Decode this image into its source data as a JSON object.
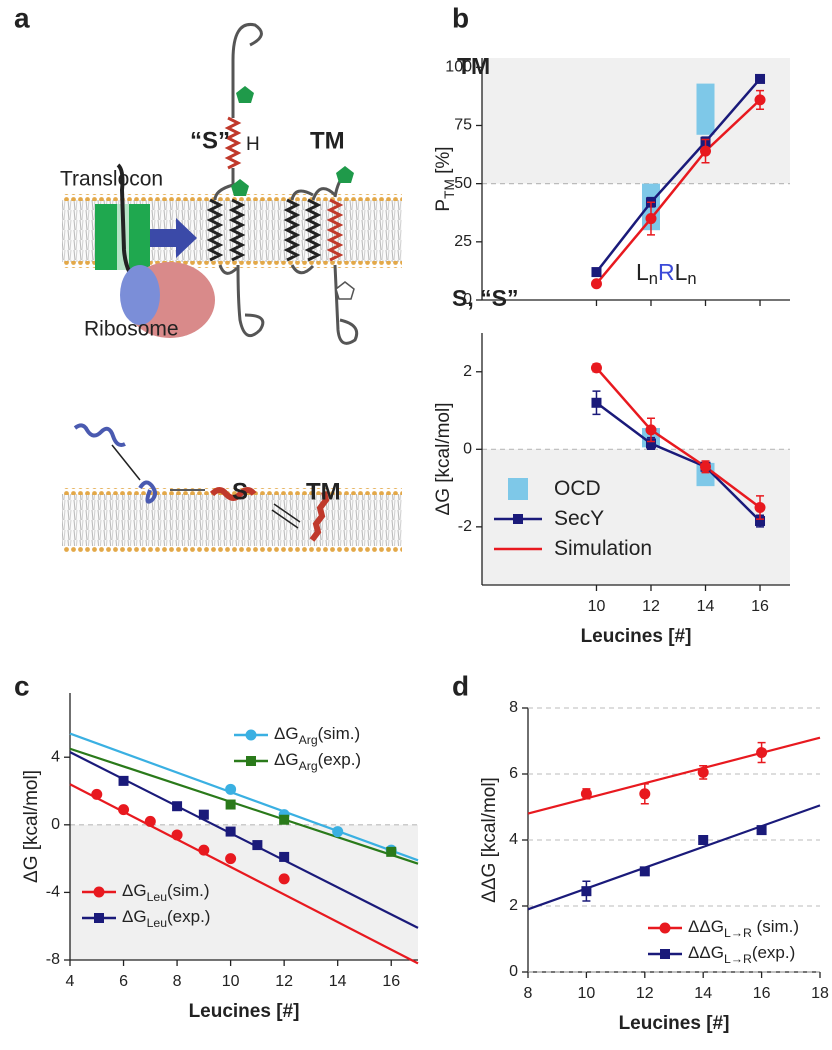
{
  "panel_labels": [
    "a",
    "b",
    "c",
    "d"
  ],
  "diagram": {
    "top": {
      "s_label": "“S”",
      "h_label": "H",
      "tm_label": "TM",
      "translocon": "Translocon",
      "ribosome": "Ribosome"
    },
    "bottom": {
      "s_label": "S",
      "tm_label": "TM"
    }
  },
  "chart_data": [
    {
      "type": "line",
      "ylabel": "PTM [%]",
      "upper_label": "TM",
      "lower_label": "S, “S”",
      "annotation": "LnRLn",
      "xlim": [
        5.8,
        17.1
      ],
      "ylim": [
        0,
        104
      ],
      "xticks": [
        10,
        12,
        14,
        16
      ],
      "xtick_labels": false,
      "yticks": [
        0,
        25,
        50,
        75,
        100
      ],
      "ref_line": 50,
      "shade": [
        50,
        104
      ],
      "series": [
        {
          "kind": "range",
          "color": "#7ec8e8",
          "x": [
            12,
            14
          ],
          "low": [
            30,
            71
          ],
          "high": [
            50,
            93
          ]
        },
        {
          "color": "#1a1a7a",
          "marker": "square",
          "x": [
            10,
            12,
            14,
            16
          ],
          "values": [
            12,
            42,
            68,
            95
          ],
          "errors": [
            1,
            2,
            2,
            1
          ]
        },
        {
          "color": "#e8191f",
          "marker": "circle",
          "x": [
            10,
            12,
            14,
            16
          ],
          "values": [
            7,
            35,
            64,
            86
          ],
          "errors": [
            1,
            7,
            5,
            4
          ]
        }
      ]
    },
    {
      "type": "line",
      "ylabel": "ΔG [kcal/mol]",
      "xlabel": "Leucines [#]",
      "xlim": [
        5.8,
        17.1
      ],
      "ylim": [
        -3.5,
        3
      ],
      "xticks": [
        10,
        12,
        14,
        16
      ],
      "yticks": [
        -2,
        0,
        2
      ],
      "ref_line": 0,
      "shade": [
        -3.5,
        0
      ],
      "legend": "lower left",
      "series": [
        {
          "name": "OCD",
          "kind": "range",
          "color": "#7ec8e8",
          "x": [
            12,
            14
          ],
          "low": [
            0.05,
            -0.95
          ],
          "high": [
            0.55,
            -0.35
          ]
        },
        {
          "name": "SecY",
          "color": "#1a1a7a",
          "marker": "square",
          "x": [
            10,
            12,
            14,
            16
          ],
          "values": [
            1.2,
            0.15,
            -0.45,
            -1.85
          ],
          "errors": [
            0.3,
            0.15,
            0.1,
            0.15
          ]
        },
        {
          "name": "Simulation",
          "color": "#e8191f",
          "marker": "circle",
          "x": [
            10,
            12,
            14,
            16
          ],
          "values": [
            2.1,
            0.5,
            -0.45,
            -1.5
          ],
          "errors": [
            0.1,
            0.3,
            0.15,
            0.3
          ]
        }
      ]
    },
    {
      "type": "scatter",
      "ylabel": "ΔG [kcal/mol]",
      "xlabel": "Leucines [#]",
      "xlim": [
        4,
        17
      ],
      "ylim": [
        -8,
        7.8
      ],
      "xticks": [
        4,
        6,
        8,
        10,
        12,
        14,
        16
      ],
      "yticks": [
        -8,
        -4,
        0,
        4
      ],
      "ref_line": 0,
      "shade": [
        -8,
        0
      ],
      "series": [
        {
          "name": "ΔGArg(sim.)",
          "legend": "upper right",
          "color": "#3ab0e2",
          "marker": "circle",
          "x": [
            10,
            12,
            14,
            16
          ],
          "values": [
            2.1,
            0.6,
            -0.4,
            -1.5
          ],
          "fit": {
            "x": [
              4,
              17
            ],
            "values": [
              5.4,
              -2.1
            ]
          }
        },
        {
          "name": "ΔGArg(exp.)",
          "legend": "upper right",
          "color": "#2a7a1a",
          "marker": "square",
          "x": [
            10,
            12,
            16
          ],
          "values": [
            1.2,
            0.3,
            -1.6
          ],
          "fit": {
            "x": [
              4,
              17
            ],
            "values": [
              4.5,
              -2.3
            ]
          }
        },
        {
          "name": "ΔGLeu(sim.)",
          "legend": "lower left",
          "color": "#e8191f",
          "marker": "circle",
          "x": [
            5,
            6,
            7,
            8,
            9,
            10,
            12
          ],
          "values": [
            1.8,
            0.9,
            0.2,
            -0.6,
            -1.5,
            -2,
            -3.2
          ],
          "fit": {
            "x": [
              4,
              17
            ],
            "values": [
              2.4,
              -8.2
            ]
          }
        },
        {
          "name": "ΔGLeu(exp.)",
          "legend": "lower left",
          "color": "#1a1a7a",
          "marker": "square",
          "x": [
            6,
            8,
            9,
            10,
            11,
            12
          ],
          "values": [
            2.6,
            1.1,
            0.6,
            -0.4,
            -1.2,
            -1.9
          ],
          "fit": {
            "x": [
              4,
              17
            ],
            "values": [
              4.3,
              -6.1
            ]
          }
        }
      ]
    },
    {
      "type": "scatter",
      "ylabel": "ΔΔG [kcal/mol]",
      "xlabel": "Leucines [#]",
      "xlim": [
        8,
        18
      ],
      "ylim": [
        0,
        8
      ],
      "xticks": [
        8,
        10,
        12,
        14,
        16,
        18
      ],
      "yticks": [
        0,
        2,
        4,
        6,
        8
      ],
      "grid": true,
      "legend": "lower right",
      "series": [
        {
          "name": "ΔΔGL→R (sim.)",
          "color": "#e8191f",
          "marker": "circle",
          "x": [
            10,
            12,
            14,
            16
          ],
          "values": [
            5.4,
            5.4,
            6.05,
            6.65
          ],
          "errors": [
            0.15,
            0.3,
            0.2,
            0.3
          ],
          "fit": {
            "x": [
              8,
              18
            ],
            "values": [
              4.8,
              7.1
            ]
          }
        },
        {
          "name": "ΔΔGL→R(exp.)",
          "color": "#1a1a7a",
          "marker": "square",
          "x": [
            10,
            12,
            14,
            16
          ],
          "values": [
            2.45,
            3.05,
            4.0,
            4.3
          ],
          "errors": [
            0.3,
            0.1,
            0.1,
            0.1
          ],
          "fit": {
            "x": [
              8,
              18
            ],
            "values": [
              1.9,
              5.05
            ]
          }
        }
      ]
    }
  ]
}
